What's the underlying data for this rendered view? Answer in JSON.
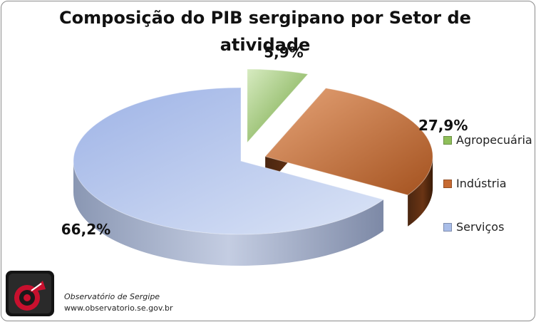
{
  "chart_data": {
    "type": "pie",
    "title": "Composição do PIB sergipano por Setor de atividade",
    "categories": [
      "Agropecuária",
      "Indústria",
      "Serviços"
    ],
    "values": [
      5.9,
      27.9,
      66.2
    ],
    "labels": [
      "5,9%",
      "27,9%",
      "66,2%"
    ],
    "colors": [
      "#8fbf5a",
      "#c66a32",
      "#a9bde8"
    ],
    "legend_position": "right",
    "style": "3d-exploded"
  },
  "footer": {
    "org": "Observatório de Sergipe",
    "url": "www.observatorio.se.gov.br",
    "logo_icon": "observatorio-logo-icon"
  }
}
